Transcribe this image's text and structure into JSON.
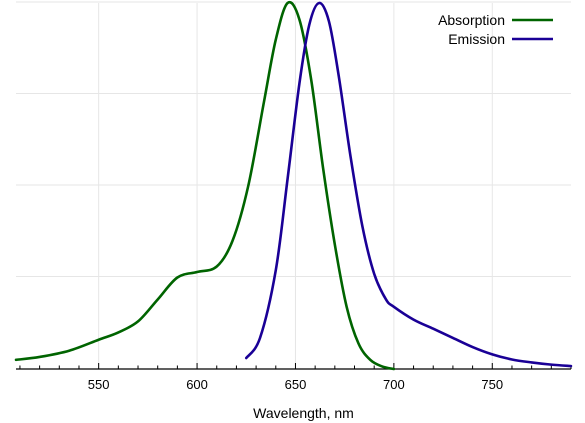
{
  "chart_data": {
    "type": "line",
    "title": "",
    "xlabel": "Wavelength, nm",
    "ylabel": "",
    "xlim": [
      508,
      790
    ],
    "ylim": [
      0,
      1.0
    ],
    "x_ticks": [
      "550",
      "600",
      "650",
      "700",
      "750"
    ],
    "grid": true,
    "legend_position": "top-right",
    "series": [
      {
        "name": "Absorption",
        "color": "#006400",
        "x": [
          508,
          520,
          535,
          550,
          560,
          570,
          580,
          590,
          600,
          610,
          618,
          626,
          634,
          640,
          646,
          652,
          658,
          664,
          670,
          676,
          682,
          688,
          694,
          700
        ],
        "y": [
          0.025,
          0.033,
          0.05,
          0.08,
          0.1,
          0.13,
          0.19,
          0.25,
          0.265,
          0.28,
          0.35,
          0.5,
          0.73,
          0.9,
          1.0,
          0.955,
          0.79,
          0.55,
          0.34,
          0.17,
          0.07,
          0.025,
          0.007,
          0.0
        ]
      },
      {
        "name": "Emission",
        "color": "#1a0096",
        "x": [
          625,
          632,
          640,
          646,
          652,
          657,
          662,
          667,
          672,
          678,
          684,
          690,
          696,
          700,
          710,
          720,
          730,
          740,
          750,
          760,
          770,
          780,
          790
        ],
        "y": [
          0.03,
          0.085,
          0.27,
          0.52,
          0.78,
          0.94,
          1.0,
          0.95,
          0.8,
          0.58,
          0.39,
          0.26,
          0.19,
          0.17,
          0.135,
          0.11,
          0.085,
          0.06,
          0.04,
          0.026,
          0.018,
          0.012,
          0.008
        ]
      }
    ]
  }
}
